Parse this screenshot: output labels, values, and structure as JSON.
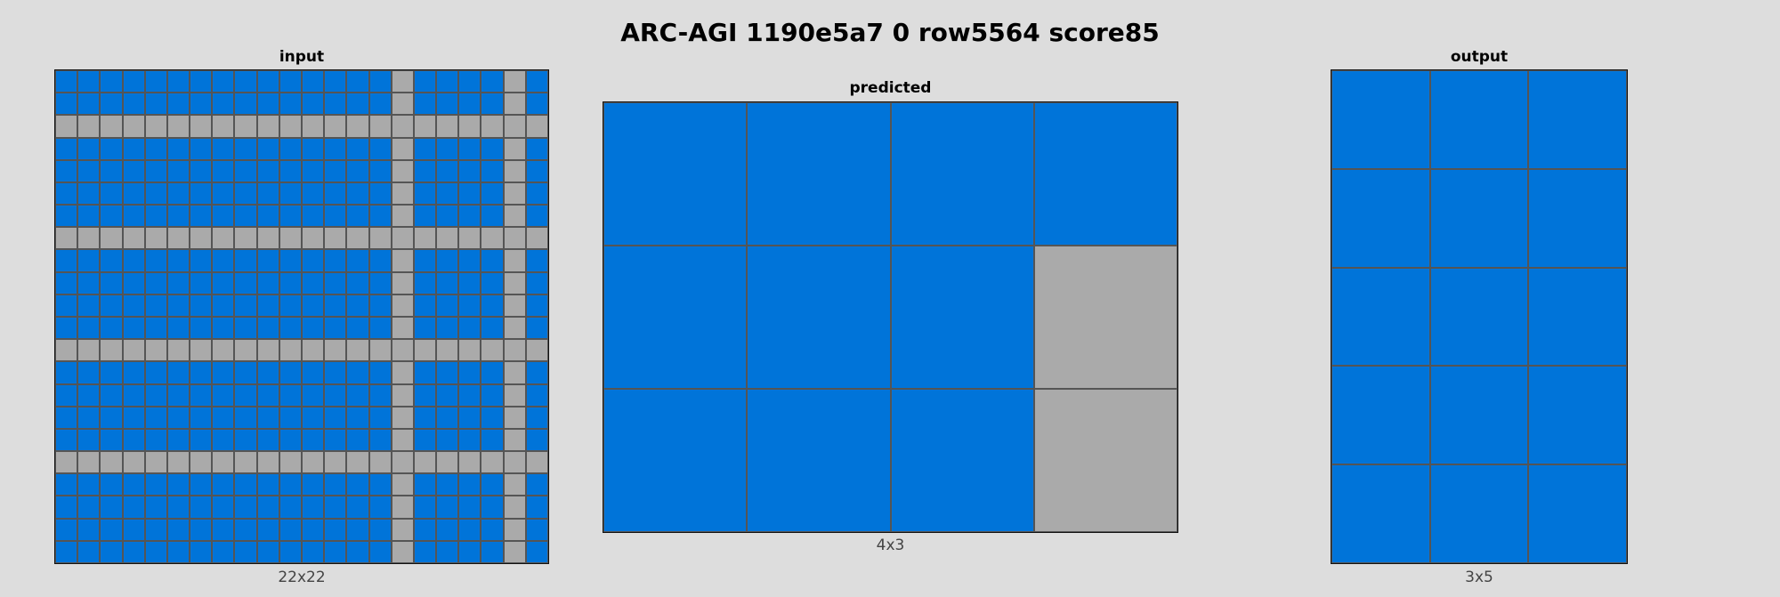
{
  "title": "ARC-AGI 1190e5a7 0 row5564 score85",
  "palette": {
    "1": "#0074d9",
    "5": "#aaaaaa"
  },
  "panels": {
    "input": {
      "label": "input",
      "caption": "22x22",
      "rows": 22,
      "cols": 22,
      "grid": [
        [
          1,
          1,
          1,
          1,
          1,
          1,
          1,
          1,
          1,
          1,
          1,
          1,
          1,
          1,
          1,
          5,
          1,
          1,
          1,
          1,
          5,
          1
        ],
        [
          1,
          1,
          1,
          1,
          1,
          1,
          1,
          1,
          1,
          1,
          1,
          1,
          1,
          1,
          1,
          5,
          1,
          1,
          1,
          1,
          5,
          1
        ],
        [
          5,
          5,
          5,
          5,
          5,
          5,
          5,
          5,
          5,
          5,
          5,
          5,
          5,
          5,
          5,
          5,
          5,
          5,
          5,
          5,
          5,
          5
        ],
        [
          1,
          1,
          1,
          1,
          1,
          1,
          1,
          1,
          1,
          1,
          1,
          1,
          1,
          1,
          1,
          5,
          1,
          1,
          1,
          1,
          5,
          1
        ],
        [
          1,
          1,
          1,
          1,
          1,
          1,
          1,
          1,
          1,
          1,
          1,
          1,
          1,
          1,
          1,
          5,
          1,
          1,
          1,
          1,
          5,
          1
        ],
        [
          1,
          1,
          1,
          1,
          1,
          1,
          1,
          1,
          1,
          1,
          1,
          1,
          1,
          1,
          1,
          5,
          1,
          1,
          1,
          1,
          5,
          1
        ],
        [
          1,
          1,
          1,
          1,
          1,
          1,
          1,
          1,
          1,
          1,
          1,
          1,
          1,
          1,
          1,
          5,
          1,
          1,
          1,
          1,
          5,
          1
        ],
        [
          5,
          5,
          5,
          5,
          5,
          5,
          5,
          5,
          5,
          5,
          5,
          5,
          5,
          5,
          5,
          5,
          5,
          5,
          5,
          5,
          5,
          5
        ],
        [
          1,
          1,
          1,
          1,
          1,
          1,
          1,
          1,
          1,
          1,
          1,
          1,
          1,
          1,
          1,
          5,
          1,
          1,
          1,
          1,
          5,
          1
        ],
        [
          1,
          1,
          1,
          1,
          1,
          1,
          1,
          1,
          1,
          1,
          1,
          1,
          1,
          1,
          1,
          5,
          1,
          1,
          1,
          1,
          5,
          1
        ],
        [
          1,
          1,
          1,
          1,
          1,
          1,
          1,
          1,
          1,
          1,
          1,
          1,
          1,
          1,
          1,
          5,
          1,
          1,
          1,
          1,
          5,
          1
        ],
        [
          1,
          1,
          1,
          1,
          1,
          1,
          1,
          1,
          1,
          1,
          1,
          1,
          1,
          1,
          1,
          5,
          1,
          1,
          1,
          1,
          5,
          1
        ],
        [
          5,
          5,
          5,
          5,
          5,
          5,
          5,
          5,
          5,
          5,
          5,
          5,
          5,
          5,
          5,
          5,
          5,
          5,
          5,
          5,
          5,
          5
        ],
        [
          1,
          1,
          1,
          1,
          1,
          1,
          1,
          1,
          1,
          1,
          1,
          1,
          1,
          1,
          1,
          5,
          1,
          1,
          1,
          1,
          5,
          1
        ],
        [
          1,
          1,
          1,
          1,
          1,
          1,
          1,
          1,
          1,
          1,
          1,
          1,
          1,
          1,
          1,
          5,
          1,
          1,
          1,
          1,
          5,
          1
        ],
        [
          1,
          1,
          1,
          1,
          1,
          1,
          1,
          1,
          1,
          1,
          1,
          1,
          1,
          1,
          1,
          5,
          1,
          1,
          1,
          1,
          5,
          1
        ],
        [
          1,
          1,
          1,
          1,
          1,
          1,
          1,
          1,
          1,
          1,
          1,
          1,
          1,
          1,
          1,
          5,
          1,
          1,
          1,
          1,
          5,
          1
        ],
        [
          5,
          5,
          5,
          5,
          5,
          5,
          5,
          5,
          5,
          5,
          5,
          5,
          5,
          5,
          5,
          5,
          5,
          5,
          5,
          5,
          5,
          5
        ],
        [
          1,
          1,
          1,
          1,
          1,
          1,
          1,
          1,
          1,
          1,
          1,
          1,
          1,
          1,
          1,
          5,
          1,
          1,
          1,
          1,
          5,
          1
        ],
        [
          1,
          1,
          1,
          1,
          1,
          1,
          1,
          1,
          1,
          1,
          1,
          1,
          1,
          1,
          1,
          5,
          1,
          1,
          1,
          1,
          5,
          1
        ],
        [
          1,
          1,
          1,
          1,
          1,
          1,
          1,
          1,
          1,
          1,
          1,
          1,
          1,
          1,
          1,
          5,
          1,
          1,
          1,
          1,
          5,
          1
        ],
        [
          1,
          1,
          1,
          1,
          1,
          1,
          1,
          1,
          1,
          1,
          1,
          1,
          1,
          1,
          1,
          5,
          1,
          1,
          1,
          1,
          5,
          1
        ]
      ]
    },
    "predicted": {
      "label": "predicted",
      "caption": "4x3",
      "rows": 3,
      "cols": 4,
      "grid": [
        [
          1,
          1,
          1,
          1
        ],
        [
          1,
          1,
          1,
          5
        ],
        [
          1,
          1,
          1,
          5
        ]
      ]
    },
    "output": {
      "label": "output",
      "caption": "3x5",
      "rows": 5,
      "cols": 3,
      "grid": [
        [
          1,
          1,
          1
        ],
        [
          1,
          1,
          1
        ],
        [
          1,
          1,
          1
        ],
        [
          1,
          1,
          1
        ],
        [
          1,
          1,
          1
        ]
      ]
    }
  }
}
